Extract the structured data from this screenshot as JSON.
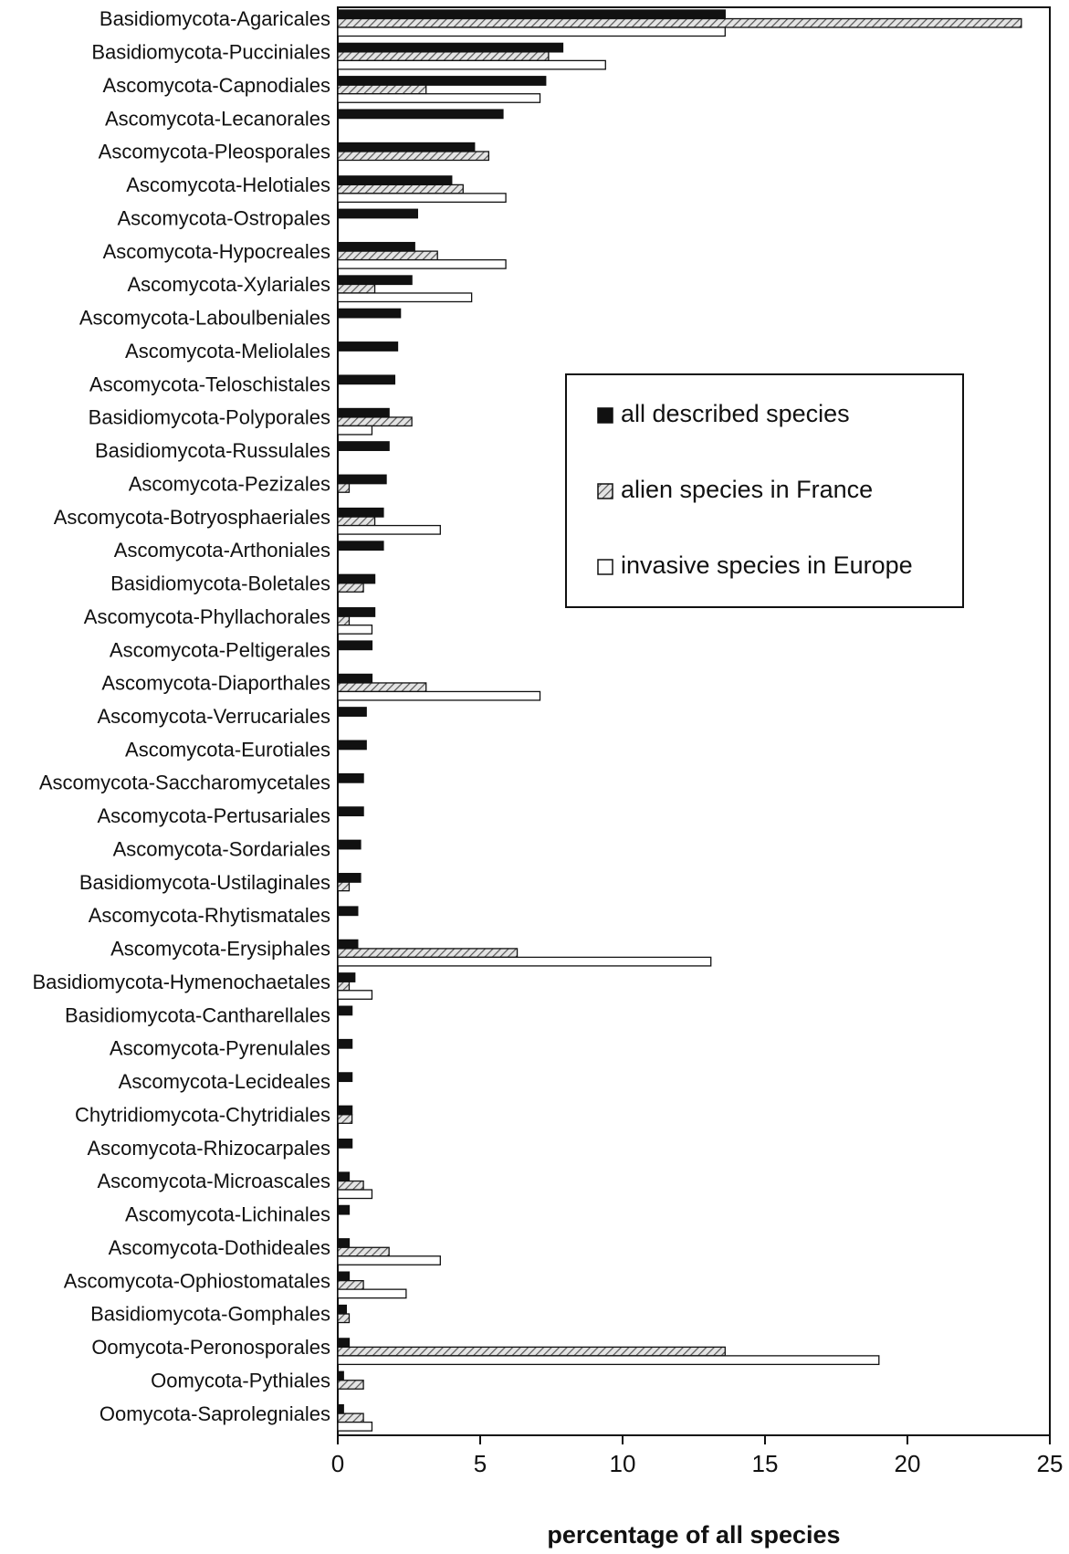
{
  "chart_data": {
    "type": "bar",
    "orientation": "horizontal",
    "title": "",
    "xlabel": "percentage of all species",
    "ylabel": "",
    "xlim": [
      0,
      25
    ],
    "xticks": [
      0,
      5,
      10,
      15,
      20,
      25
    ],
    "grid": false,
    "legend_position": "center-right",
    "categories": [
      "Basidiomycota-Agaricales",
      "Basidiomycota-Pucciniales",
      "Ascomycota-Capnodiales",
      "Ascomycota-Lecanorales",
      "Ascomycota-Pleosporales",
      "Ascomycota-Helotiales",
      "Ascomycota-Ostropales",
      "Ascomycota-Hypocreales",
      "Ascomycota-Xylariales",
      "Ascomycota-Laboulbeniales",
      "Ascomycota-Meliolales",
      "Ascomycota-Teloschistales",
      "Basidiomycota-Polyporales",
      "Basidiomycota-Russulales",
      "Ascomycota-Pezizales",
      "Ascomycota-Botryosphaeriales",
      "Ascomycota-Arthoniales",
      "Basidiomycota-Boletales",
      "Ascomycota-Phyllachorales",
      "Ascomycota-Peltigerales",
      "Ascomycota-Diaporthales",
      "Ascomycota-Verrucariales",
      "Ascomycota-Eurotiales",
      "Ascomycota-Saccharomycetales",
      "Ascomycota-Pertusariales",
      "Ascomycota-Sordariales",
      "Basidiomycota-Ustilaginales",
      "Ascomycota-Rhytismatales",
      "Ascomycota-Erysiphales",
      "Basidiomycota-Hymenochaetales",
      "Basidiomycota-Cantharellales",
      "Ascomycota-Pyrenulales",
      "Ascomycota-Lecideales",
      "Chytridiomycota-Chytridiales",
      "Ascomycota-Rhizocarpales",
      "Ascomycota-Microascales",
      "Ascomycota-Lichinales",
      "Ascomycota-Dothideales",
      "Ascomycota-Ophiostomatales",
      "Basidiomycota-Gomphales",
      "Oomycota-Peronosporales",
      "Oomycota-Pythiales",
      "Oomycota-Saprolegniales"
    ],
    "series": [
      {
        "name": "all described species",
        "pattern": "solid",
        "color": "#111111",
        "values": [
          13.6,
          7.9,
          7.3,
          5.8,
          4.8,
          4.0,
          2.8,
          2.7,
          2.6,
          2.2,
          2.1,
          2.0,
          1.8,
          1.8,
          1.7,
          1.6,
          1.6,
          1.3,
          1.3,
          1.2,
          1.2,
          1.0,
          1.0,
          0.9,
          0.9,
          0.8,
          0.8,
          0.7,
          0.7,
          0.6,
          0.5,
          0.5,
          0.5,
          0.5,
          0.5,
          0.4,
          0.4,
          0.4,
          0.4,
          0.3,
          0.4,
          0.2,
          0.2
        ]
      },
      {
        "name": "alien species in France",
        "pattern": "hatched",
        "color": "#9a9a9a",
        "values": [
          24.0,
          7.4,
          3.1,
          0,
          5.3,
          4.4,
          0,
          3.5,
          1.3,
          0,
          0,
          0,
          2.6,
          0,
          0.4,
          1.3,
          0,
          0.9,
          0.4,
          0,
          3.1,
          0,
          0,
          0,
          0,
          0,
          0.4,
          0,
          6.3,
          0.4,
          0,
          0,
          0,
          0.5,
          0,
          0.9,
          0,
          1.8,
          0.9,
          0.4,
          13.6,
          0.9,
          0.9
        ]
      },
      {
        "name": "invasive species in Europe",
        "pattern": "open",
        "color": "#ffffff",
        "values": [
          13.6,
          9.4,
          7.1,
          0,
          0,
          5.9,
          0,
          5.9,
          4.7,
          0,
          0,
          0,
          1.2,
          0,
          0,
          3.6,
          0,
          0,
          1.2,
          0,
          7.1,
          0,
          0,
          0,
          0,
          0,
          0,
          0,
          13.1,
          1.2,
          0,
          0,
          0,
          0,
          0,
          1.2,
          0,
          3.6,
          2.4,
          0,
          19.0,
          0,
          1.2
        ]
      }
    ]
  }
}
